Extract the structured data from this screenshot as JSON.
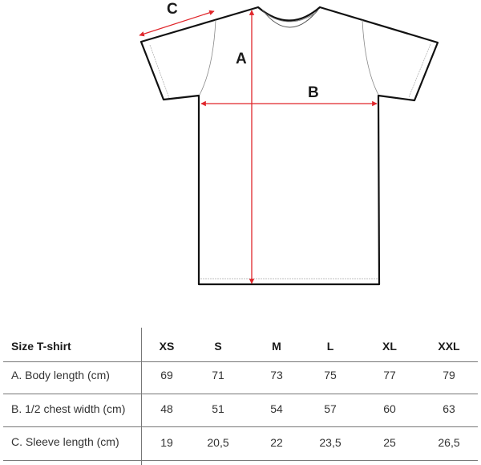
{
  "diagram": {
    "labels": {
      "a": "A",
      "b": "B",
      "c": "C"
    },
    "arrow_color": "#e0262b",
    "outline_color": "#111111"
  },
  "table": {
    "header": "Size T-shirt",
    "sizes": [
      "XS",
      "S",
      "M",
      "L",
      "XL",
      "XXL"
    ],
    "rows": [
      {
        "label": "A. Body length (cm)",
        "values": [
          "69",
          "71",
          "73",
          "75",
          "77",
          "79"
        ]
      },
      {
        "label": "B. 1/2 chest width (cm)",
        "values": [
          "48",
          "51",
          "54",
          "57",
          "60",
          "63"
        ]
      },
      {
        "label": "C. Sleeve length (cm)",
        "values": [
          "19",
          "20,5",
          "22",
          "23,5",
          "25",
          "26,5"
        ]
      }
    ]
  }
}
